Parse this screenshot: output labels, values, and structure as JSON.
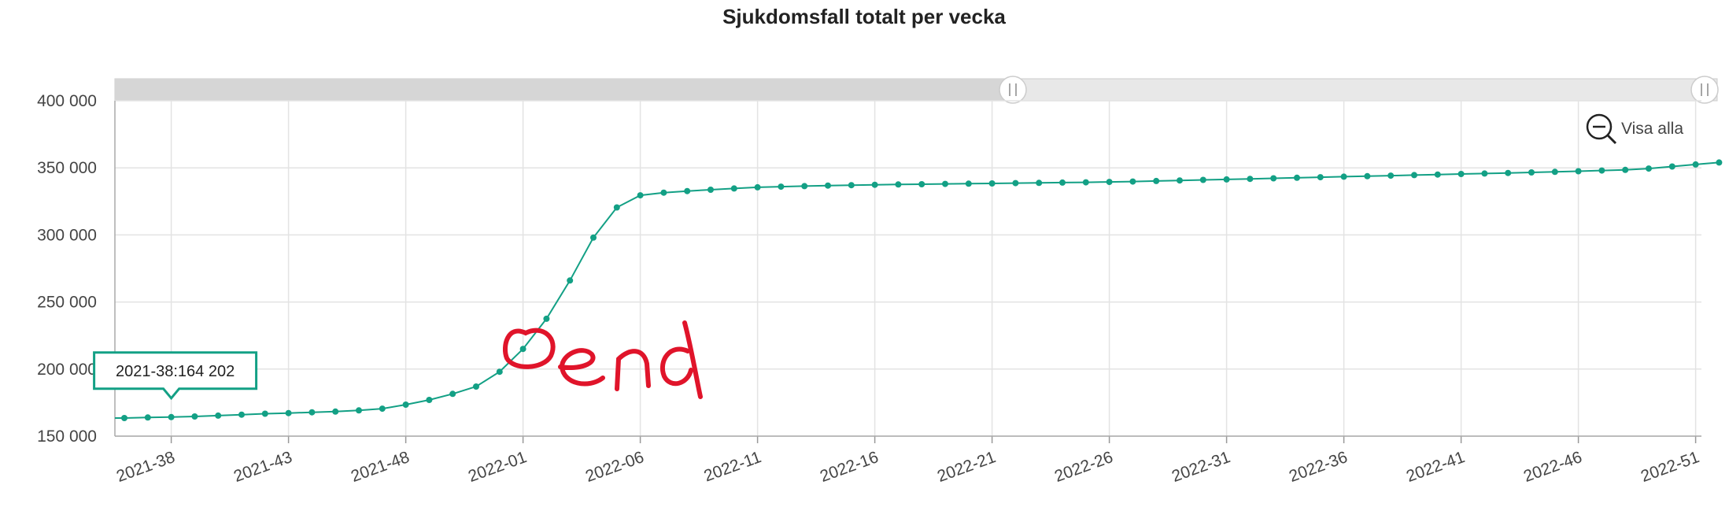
{
  "chart_data": {
    "type": "line",
    "title": "Sjukdomsfall totalt per vecka",
    "xlabel": "",
    "ylabel": "",
    "ylim": [
      150000,
      400000
    ],
    "yticks": [
      "150 000",
      "200 000",
      "250 000",
      "300 000",
      "350 000",
      "400 000"
    ],
    "ytick_values": [
      150000,
      200000,
      250000,
      300000,
      350000,
      400000
    ],
    "xtick_labels": [
      "2021-38",
      "2021-43",
      "2021-48",
      "2022-01",
      "2022-06",
      "2022-11",
      "2022-16",
      "2022-21",
      "2022-26",
      "2022-31",
      "2022-36",
      "2022-41",
      "2022-46",
      "2022-51"
    ],
    "grid": true,
    "legend": "none",
    "color": "#13a085",
    "x": [
      "2021-36",
      "2021-37",
      "2021-38",
      "2021-39",
      "2021-40",
      "2021-41",
      "2021-42",
      "2021-43",
      "2021-44",
      "2021-45",
      "2021-46",
      "2021-47",
      "2021-48",
      "2021-49",
      "2021-50",
      "2021-51",
      "2021-52",
      "2022-01",
      "2022-02",
      "2022-03",
      "2022-04",
      "2022-05",
      "2022-06",
      "2022-07",
      "2022-08",
      "2022-09",
      "2022-10",
      "2022-11",
      "2022-12",
      "2022-13",
      "2022-14",
      "2022-15",
      "2022-16",
      "2022-17",
      "2022-18",
      "2022-19",
      "2022-20",
      "2022-21",
      "2022-22",
      "2022-23",
      "2022-24",
      "2022-25",
      "2022-26",
      "2022-27",
      "2022-28",
      "2022-29",
      "2022-30",
      "2022-31",
      "2022-32",
      "2022-33",
      "2022-34",
      "2022-35",
      "2022-36",
      "2022-37",
      "2022-38",
      "2022-39",
      "2022-40",
      "2022-41",
      "2022-42",
      "2022-43",
      "2022-44",
      "2022-45",
      "2022-46",
      "2022-47",
      "2022-48",
      "2022-49",
      "2022-50",
      "2022-51",
      "2022-52"
    ],
    "values": [
      163500,
      163900,
      164202,
      164700,
      165300,
      166000,
      166700,
      167200,
      167800,
      168300,
      169200,
      170500,
      173500,
      177000,
      181500,
      187000,
      198000,
      215000,
      237500,
      266000,
      298000,
      320500,
      329500,
      331500,
      332700,
      333700,
      334600,
      335500,
      336000,
      336400,
      336800,
      337100,
      337400,
      337600,
      337800,
      338000,
      338200,
      338400,
      338600,
      338800,
      339000,
      339200,
      339500,
      339800,
      340200,
      340600,
      341000,
      341400,
      341800,
      342200,
      342600,
      343000,
      343400,
      343800,
      344200,
      344600,
      345000,
      345400,
      345800,
      346200,
      346600,
      347000,
      347500,
      348000,
      348500,
      349500,
      351000,
      352500,
      354000
    ],
    "annotation": "Oend",
    "tooltip": {
      "label": "2021-38:164 202",
      "index": 2
    },
    "reset_zoom_label": "Visa alla"
  }
}
